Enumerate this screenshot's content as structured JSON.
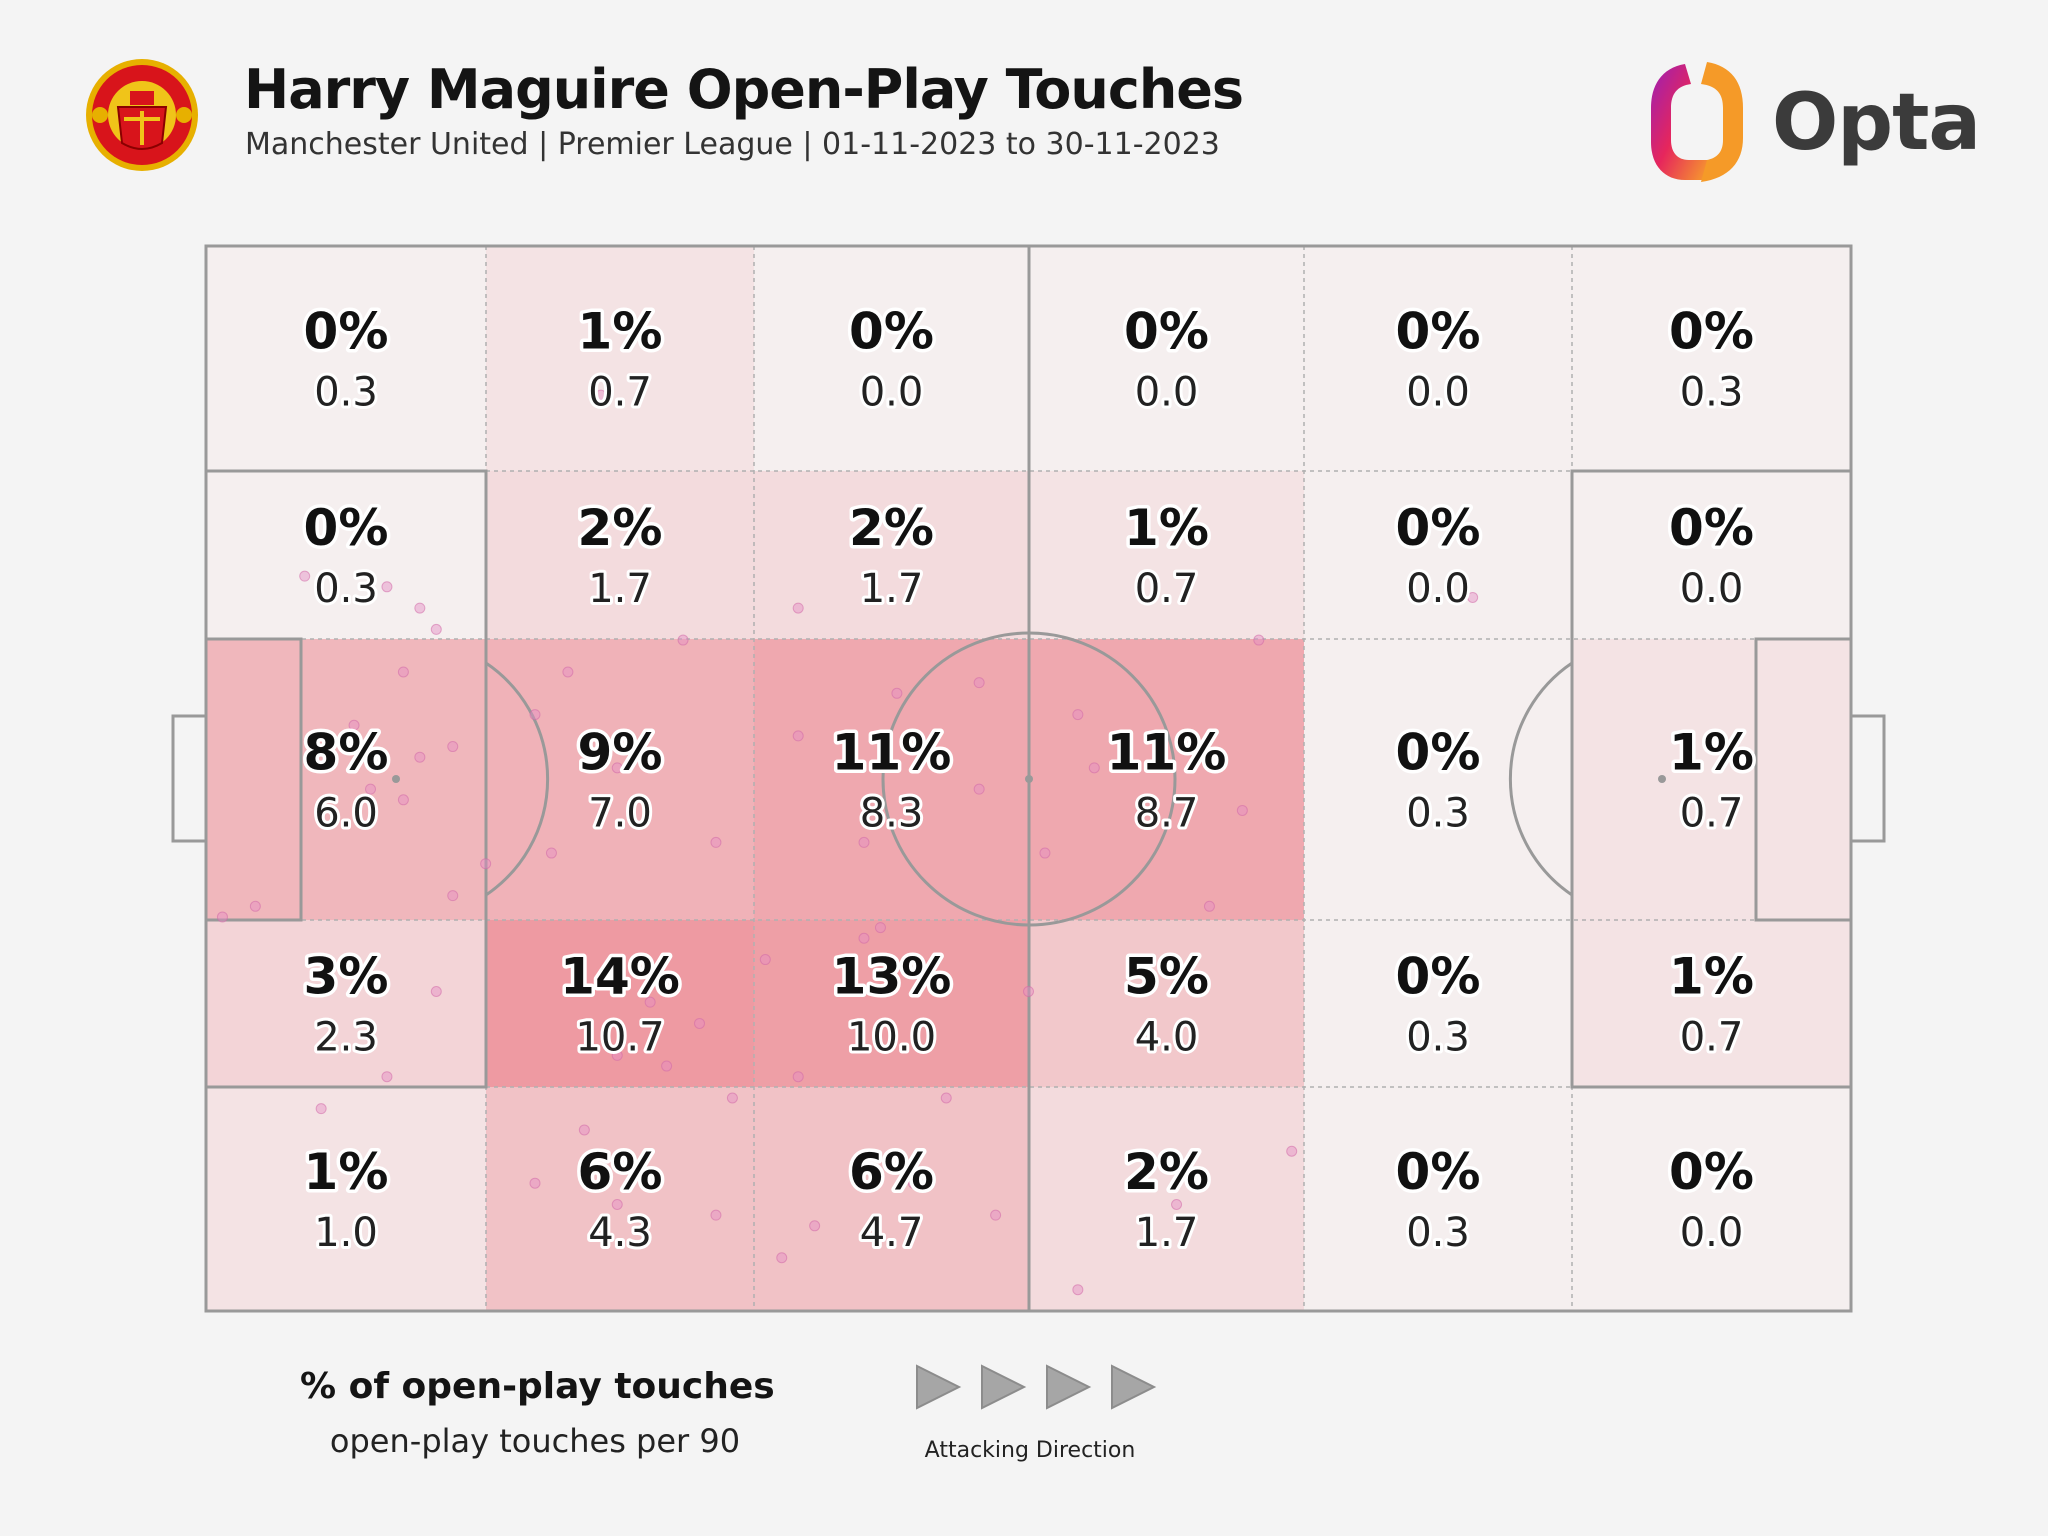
{
  "header": {
    "title": "Harry Maguire Open-Play Touches",
    "subtitle": "Manchester United | Premier League | 01-11-2023 to 30-11-2023",
    "brand": "Opta"
  },
  "colors": {
    "background": "#f4f4f4",
    "heat_low": "#f5efef",
    "heat_high": "#ee9aa2",
    "touch_dot": "#e58cc4",
    "pitch_line": "#999999"
  },
  "legend": {
    "percent_label": "% of open-play touches",
    "per90_label": "open-play touches per 90",
    "direction_label": "Attacking Direction"
  },
  "chart_data": {
    "type": "heatmap",
    "title": "Harry Maguire Open-Play Touches",
    "subtitle": "Manchester United | Premier League | 01-11-2023 to 30-11-2023",
    "columns": 6,
    "rows": 5,
    "attacking_direction": "left-to-right",
    "zones": [
      [
        {
          "pct": "0%",
          "per90": "0.3"
        },
        {
          "pct": "1%",
          "per90": "0.7"
        },
        {
          "pct": "0%",
          "per90": "0.0"
        },
        {
          "pct": "0%",
          "per90": "0.0"
        },
        {
          "pct": "0%",
          "per90": "0.0"
        },
        {
          "pct": "0%",
          "per90": "0.3"
        }
      ],
      [
        {
          "pct": "0%",
          "per90": "0.3"
        },
        {
          "pct": "2%",
          "per90": "1.7"
        },
        {
          "pct": "2%",
          "per90": "1.7"
        },
        {
          "pct": "1%",
          "per90": "0.7"
        },
        {
          "pct": "0%",
          "per90": "0.0"
        },
        {
          "pct": "0%",
          "per90": "0.0"
        }
      ],
      [
        {
          "pct": "8%",
          "per90": "6.0"
        },
        {
          "pct": "9%",
          "per90": "7.0"
        },
        {
          "pct": "11%",
          "per90": "8.3"
        },
        {
          "pct": "11%",
          "per90": "8.7"
        },
        {
          "pct": "0%",
          "per90": "0.3"
        },
        {
          "pct": "1%",
          "per90": "0.7"
        }
      ],
      [
        {
          "pct": "3%",
          "per90": "2.3"
        },
        {
          "pct": "14%",
          "per90": "10.7"
        },
        {
          "pct": "13%",
          "per90": "10.0"
        },
        {
          "pct": "5%",
          "per90": "4.0"
        },
        {
          "pct": "0%",
          "per90": "0.3"
        },
        {
          "pct": "1%",
          "per90": "0.7"
        }
      ],
      [
        {
          "pct": "1%",
          "per90": "1.0"
        },
        {
          "pct": "6%",
          "per90": "4.3"
        },
        {
          "pct": "6%",
          "per90": "4.7"
        },
        {
          "pct": "2%",
          "per90": "1.7"
        },
        {
          "pct": "0%",
          "per90": "0.3"
        },
        {
          "pct": "0%",
          "per90": "0.0"
        }
      ]
    ],
    "touch_points": [
      [
        6,
        31
      ],
      [
        24,
        14
      ],
      [
        36,
        34
      ],
      [
        77,
        33
      ],
      [
        12,
        40
      ],
      [
        14,
        36
      ],
      [
        13,
        34
      ],
      [
        11,
        32
      ],
      [
        22,
        40
      ],
      [
        29,
        37
      ],
      [
        42,
        42
      ],
      [
        47,
        41
      ],
      [
        53,
        44
      ],
      [
        64,
        37
      ],
      [
        51,
        57
      ],
      [
        1,
        63
      ],
      [
        3,
        62
      ],
      [
        10,
        51
      ],
      [
        12,
        52
      ],
      [
        17,
        58
      ],
      [
        13,
        48
      ],
      [
        15,
        47
      ],
      [
        20,
        44
      ],
      [
        9,
        45
      ],
      [
        15,
        61
      ],
      [
        21,
        57
      ],
      [
        25,
        49
      ],
      [
        31,
        56
      ],
      [
        36,
        46
      ],
      [
        40,
        56
      ],
      [
        41,
        64
      ],
      [
        47,
        51
      ],
      [
        54,
        49
      ],
      [
        61,
        62
      ],
      [
        63,
        53
      ],
      [
        32,
        80
      ],
      [
        36,
        78
      ],
      [
        34,
        67
      ],
      [
        30,
        73
      ],
      [
        28,
        77
      ],
      [
        23,
        83
      ],
      [
        25,
        76
      ],
      [
        27,
        71
      ],
      [
        40,
        65
      ],
      [
        45,
        80
      ],
      [
        50,
        70
      ],
      [
        7,
        81
      ],
      [
        11,
        78
      ],
      [
        14,
        70
      ],
      [
        20,
        88
      ],
      [
        25,
        90
      ],
      [
        31,
        91
      ],
      [
        35,
        95
      ],
      [
        37,
        92
      ],
      [
        43,
        88
      ],
      [
        48,
        91
      ],
      [
        53,
        98
      ],
      [
        59,
        90
      ],
      [
        66,
        85
      ]
    ]
  }
}
